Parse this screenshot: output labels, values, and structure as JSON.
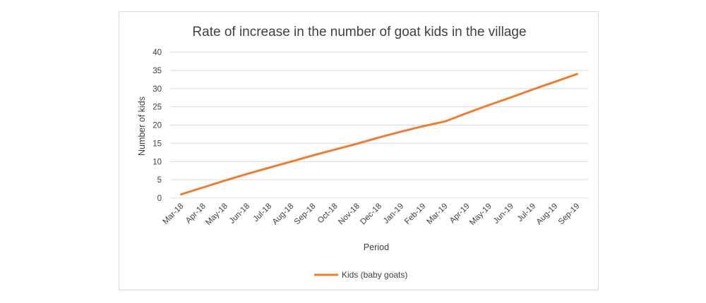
{
  "chart_data": {
    "type": "line",
    "title": "Rate of increase in the number of goat kids in the village",
    "xlabel": "Period",
    "ylabel": "Number of kids",
    "ylim": [
      0,
      40
    ],
    "yticks": [
      0,
      5,
      10,
      15,
      20,
      25,
      30,
      35,
      40
    ],
    "grid": true,
    "legend_position": "bottom",
    "categories": [
      "Mar-18",
      "Apr-18",
      "May-18",
      "Jun-18",
      "Jul-18",
      "Aug-18",
      "Sep-18",
      "Oct-18",
      "Nov-18",
      "Dec-18",
      "Jan-19",
      "Feb-19",
      "Mar-19",
      "Apr-19",
      "May-19",
      "Jun-19",
      "Jul-19",
      "Aug-19",
      "Sep-19"
    ],
    "series": [
      {
        "name": "Kids (baby goats)",
        "color": "#ed7d31",
        "values": [
          1,
          2.9,
          4.8,
          6.6,
          8.3,
          10,
          11.7,
          13.3,
          14.9,
          16.6,
          18.2,
          19.7,
          21,
          23.3,
          25.5,
          27.6,
          29.8,
          31.9,
          34
        ]
      }
    ]
  }
}
